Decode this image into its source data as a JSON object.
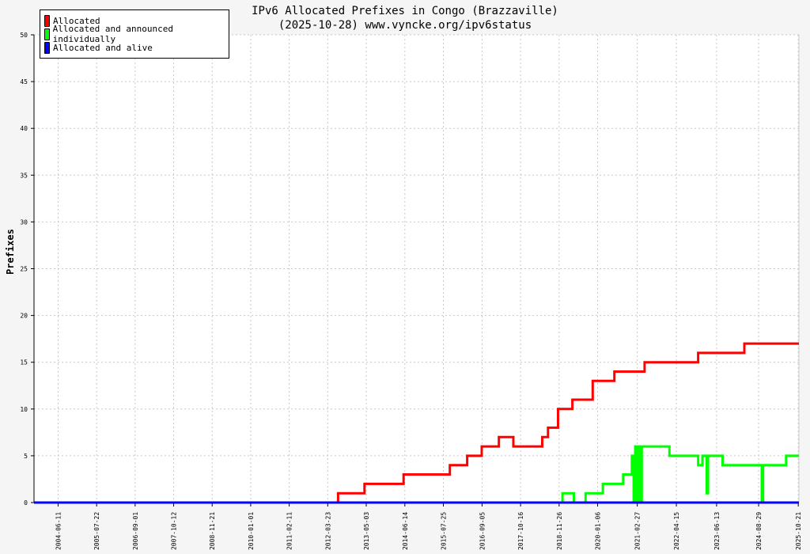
{
  "chart_data": {
    "type": "line",
    "title": "IPv6 Allocated Prefixes in Congo (Brazzaville)",
    "subtitle": "(2025-10-28) www.vyncke.org/ipv6status",
    "ylabel": "Prefixes",
    "xlabel": "",
    "ylim": [
      0,
      50
    ],
    "yticks": [
      0,
      5,
      10,
      15,
      20,
      25,
      30,
      35,
      40,
      45,
      50
    ],
    "xlim": [
      "2003-10-01",
      "2025-10-28"
    ],
    "xticks": [
      "2004-06-11",
      "2005-07-22",
      "2006-09-01",
      "2007-10-12",
      "2008-11-21",
      "2010-01-01",
      "2011-02-11",
      "2012-03-23",
      "2013-05-03",
      "2014-06-14",
      "2015-07-25",
      "2016-09-05",
      "2017-10-16",
      "2018-11-26",
      "2020-01-06",
      "2021-02-27",
      "2022-04-15",
      "2023-06-13",
      "2024-08-29",
      "2025-10-21"
    ],
    "grid": true,
    "legend_position": "top-left",
    "series": [
      {
        "name": "Allocated",
        "color": "#ff0000",
        "points": [
          [
            "2003-10-01",
            0
          ],
          [
            "2012-07-10",
            0
          ],
          [
            "2012-07-10",
            1
          ],
          [
            "2013-04-15",
            1
          ],
          [
            "2013-04-15",
            2
          ],
          [
            "2014-06-01",
            2
          ],
          [
            "2014-06-01",
            3
          ],
          [
            "2015-10-01",
            3
          ],
          [
            "2015-10-01",
            4
          ],
          [
            "2016-04-01",
            4
          ],
          [
            "2016-04-01",
            5
          ],
          [
            "2016-09-01",
            5
          ],
          [
            "2016-09-01",
            6
          ],
          [
            "2017-03-01",
            6
          ],
          [
            "2017-03-01",
            7
          ],
          [
            "2017-08-01",
            7
          ],
          [
            "2017-08-01",
            6
          ],
          [
            "2018-06-01",
            6
          ],
          [
            "2018-06-01",
            7
          ],
          [
            "2018-08-01",
            7
          ],
          [
            "2018-08-01",
            8
          ],
          [
            "2018-11-15",
            8
          ],
          [
            "2018-11-15",
            10
          ],
          [
            "2019-04-15",
            10
          ],
          [
            "2019-04-15",
            11
          ],
          [
            "2019-11-15",
            11
          ],
          [
            "2019-11-15",
            13
          ],
          [
            "2020-07-01",
            13
          ],
          [
            "2020-07-01",
            14
          ],
          [
            "2021-05-15",
            14
          ],
          [
            "2021-05-15",
            15
          ],
          [
            "2022-12-01",
            15
          ],
          [
            "2022-12-01",
            16
          ],
          [
            "2024-04-01",
            16
          ],
          [
            "2024-04-01",
            17
          ],
          [
            "2025-10-28",
            17
          ]
        ]
      },
      {
        "name": "Allocated and announced individually",
        "color": "#00ff00",
        "points": [
          [
            "2003-10-01",
            0
          ],
          [
            "2019-01-01",
            0
          ],
          [
            "2019-01-01",
            1
          ],
          [
            "2019-05-01",
            1
          ],
          [
            "2019-05-01",
            0
          ],
          [
            "2019-09-01",
            0
          ],
          [
            "2019-09-01",
            1
          ],
          [
            "2020-03-01",
            1
          ],
          [
            "2020-03-01",
            2
          ],
          [
            "2020-10-01",
            2
          ],
          [
            "2020-10-01",
            3
          ],
          [
            "2021-01-01",
            3
          ],
          [
            "2021-01-01",
            5
          ],
          [
            "2021-01-20",
            5
          ],
          [
            "2021-01-20",
            0
          ],
          [
            "2021-02-05",
            0
          ],
          [
            "2021-02-05",
            6
          ],
          [
            "2021-02-25",
            6
          ],
          [
            "2021-02-25",
            0
          ],
          [
            "2021-03-10",
            0
          ],
          [
            "2021-03-10",
            6
          ],
          [
            "2021-04-01",
            6
          ],
          [
            "2021-04-01",
            0
          ],
          [
            "2021-04-15",
            0
          ],
          [
            "2021-04-15",
            6
          ],
          [
            "2022-02-01",
            6
          ],
          [
            "2022-02-01",
            5
          ],
          [
            "2022-12-01",
            5
          ],
          [
            "2022-12-01",
            4
          ],
          [
            "2023-01-15",
            4
          ],
          [
            "2023-01-15",
            5
          ],
          [
            "2023-03-01",
            5
          ],
          [
            "2023-03-01",
            1
          ],
          [
            "2023-03-15",
            1
          ],
          [
            "2023-03-15",
            5
          ],
          [
            "2023-08-15",
            5
          ],
          [
            "2023-08-15",
            4
          ],
          [
            "2024-10-01",
            4
          ],
          [
            "2024-10-01",
            0
          ],
          [
            "2024-10-15",
            0
          ],
          [
            "2024-10-15",
            4
          ],
          [
            "2025-06-15",
            4
          ],
          [
            "2025-06-15",
            5
          ],
          [
            "2025-10-28",
            5
          ]
        ]
      },
      {
        "name": "Allocated and alive",
        "color": "#0000ff",
        "points": [
          [
            "2003-10-01",
            0
          ],
          [
            "2025-10-28",
            0
          ]
        ]
      }
    ]
  },
  "colors": {
    "background": "#f5f5f5",
    "plot_background": "#ffffff",
    "grid": "#c8c8c8"
  }
}
